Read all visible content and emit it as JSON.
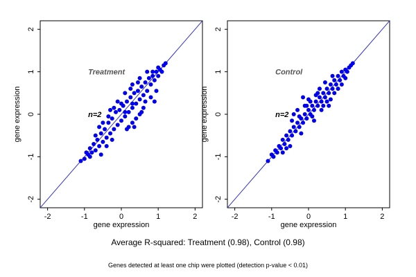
{
  "chart_data": [
    {
      "type": "scatter",
      "title": "",
      "xlabel": "gene expression",
      "ylabel": "gene expression",
      "xlim": [
        -2.2,
        2.2
      ],
      "ylim": [
        -2.2,
        2.2
      ],
      "xticks": [
        "-2",
        "-1",
        "0",
        "1",
        "2"
      ],
      "yticks": [
        "-2",
        "-1",
        "0",
        "1",
        "2"
      ],
      "grid": false,
      "reference_line": {
        "slope": 1,
        "intercept": 0,
        "color": "#3333cc"
      },
      "point_color": "#0000ee",
      "annotations": [
        {
          "text": "Treatment",
          "x": -0.9,
          "y": 1.0,
          "color": "#555555"
        },
        {
          "text": "n=2",
          "x": -0.9,
          "y": 0.0,
          "color": "#000000"
        }
      ],
      "series": [
        {
          "points": [
            [
              -1.1,
              -1.1
            ],
            [
              -1.0,
              -1.05
            ],
            [
              -0.95,
              -0.9
            ],
            [
              -0.9,
              -0.95
            ],
            [
              -0.85,
              -0.8
            ],
            [
              -0.8,
              -0.9
            ],
            [
              -0.75,
              -0.7
            ],
            [
              -0.7,
              -0.85
            ],
            [
              -0.65,
              -0.6
            ],
            [
              -0.6,
              -0.75
            ],
            [
              -0.55,
              -0.45
            ],
            [
              -0.5,
              -0.65
            ],
            [
              -0.45,
              -0.35
            ],
            [
              -0.4,
              -0.55
            ],
            [
              -0.35,
              -0.2
            ],
            [
              -0.3,
              -0.45
            ],
            [
              -0.25,
              -0.1
            ],
            [
              -0.2,
              -0.35
            ],
            [
              -0.15,
              0.05
            ],
            [
              -0.1,
              -0.25
            ],
            [
              -0.05,
              0.1
            ],
            [
              0.0,
              -0.15
            ],
            [
              0.05,
              0.2
            ],
            [
              0.1,
              -0.05
            ],
            [
              0.15,
              0.3
            ],
            [
              0.2,
              0.05
            ],
            [
              0.25,
              0.4
            ],
            [
              0.3,
              0.15
            ],
            [
              0.35,
              0.5
            ],
            [
              0.4,
              0.25
            ],
            [
              0.45,
              0.55
            ],
            [
              0.5,
              0.35
            ],
            [
              0.55,
              0.65
            ],
            [
              0.6,
              0.45
            ],
            [
              0.65,
              0.75
            ],
            [
              0.7,
              0.55
            ],
            [
              0.75,
              0.85
            ],
            [
              0.8,
              0.7
            ],
            [
              0.85,
              0.9
            ],
            [
              0.9,
              0.8
            ],
            [
              0.95,
              1.0
            ],
            [
              1.0,
              0.9
            ],
            [
              1.05,
              1.05
            ],
            [
              1.1,
              1.0
            ],
            [
              1.15,
              1.15
            ],
            [
              1.2,
              1.2
            ],
            [
              -0.5,
              -0.2
            ],
            [
              -0.3,
              0.1
            ],
            [
              -0.1,
              0.3
            ],
            [
              0.1,
              0.5
            ],
            [
              0.3,
              0.7
            ],
            [
              -0.6,
              -0.3
            ],
            [
              0.2,
              -0.3
            ],
            [
              0.4,
              -0.1
            ],
            [
              -0.4,
              -0.75
            ],
            [
              0.6,
              0.15
            ],
            [
              0.8,
              0.4
            ],
            [
              0.9,
              0.3
            ],
            [
              -0.7,
              -0.5
            ],
            [
              0.0,
              0.25
            ],
            [
              0.5,
              0.85
            ],
            [
              0.7,
              1.0
            ],
            [
              -0.2,
              0.15
            ],
            [
              0.3,
              -0.2
            ],
            [
              0.55,
              0.05
            ],
            [
              -0.85,
              -1.0
            ],
            [
              -0.25,
              -0.6
            ],
            [
              0.15,
              -0.35
            ],
            [
              0.45,
              0.75
            ],
            [
              1.0,
              1.1
            ],
            [
              0.35,
              -0.3
            ],
            [
              0.5,
              0.0
            ],
            [
              0.65,
              0.3
            ],
            [
              0.95,
              0.55
            ],
            [
              0.3,
              0.25
            ],
            [
              -0.55,
              -0.95
            ],
            [
              0.25,
              0.6
            ],
            [
              0.85,
              1.0
            ],
            [
              0.1,
              0.05
            ],
            [
              -0.35,
              -0.05
            ]
          ]
        }
      ]
    },
    {
      "type": "scatter",
      "title": "",
      "xlabel": "gene expression",
      "ylabel": "gene expression",
      "xlim": [
        -2.2,
        2.2
      ],
      "ylim": [
        -2.2,
        2.2
      ],
      "xticks": [
        "-2",
        "-1",
        "0",
        "1",
        "2"
      ],
      "yticks": [
        "-2",
        "-1",
        "0",
        "1",
        "2"
      ],
      "grid": false,
      "reference_line": {
        "slope": 1,
        "intercept": 0,
        "color": "#3333cc"
      },
      "point_color": "#0000ee",
      "annotations": [
        {
          "text": "Control",
          "x": -0.9,
          "y": 1.0,
          "color": "#555555"
        },
        {
          "text": "n=2",
          "x": -0.9,
          "y": 0.0,
          "color": "#000000"
        }
      ],
      "series": [
        {
          "points": [
            [
              -1.1,
              -1.1
            ],
            [
              -1.0,
              -0.95
            ],
            [
              -0.95,
              -1.0
            ],
            [
              -0.9,
              -0.85
            ],
            [
              -0.85,
              -0.9
            ],
            [
              -0.8,
              -0.75
            ],
            [
              -0.75,
              -0.8
            ],
            [
              -0.7,
              -0.6
            ],
            [
              -0.65,
              -0.7
            ],
            [
              -0.6,
              -0.5
            ],
            [
              -0.55,
              -0.6
            ],
            [
              -0.5,
              -0.4
            ],
            [
              -0.45,
              -0.5
            ],
            [
              -0.4,
              -0.3
            ],
            [
              -0.35,
              -0.4
            ],
            [
              -0.3,
              -0.2
            ],
            [
              -0.25,
              -0.3
            ],
            [
              -0.2,
              -0.1
            ],
            [
              -0.15,
              -0.2
            ],
            [
              -0.1,
              0.0
            ],
            [
              -0.05,
              -0.1
            ],
            [
              0.0,
              0.1
            ],
            [
              0.05,
              0.0
            ],
            [
              0.1,
              0.2
            ],
            [
              0.15,
              0.1
            ],
            [
              0.2,
              0.3
            ],
            [
              0.25,
              0.2
            ],
            [
              0.3,
              0.4
            ],
            [
              0.35,
              0.3
            ],
            [
              0.4,
              0.5
            ],
            [
              0.45,
              0.4
            ],
            [
              0.5,
              0.6
            ],
            [
              0.55,
              0.5
            ],
            [
              0.6,
              0.7
            ],
            [
              0.65,
              0.6
            ],
            [
              0.7,
              0.8
            ],
            [
              0.75,
              0.7
            ],
            [
              0.8,
              0.9
            ],
            [
              0.85,
              0.8
            ],
            [
              0.9,
              1.0
            ],
            [
              0.95,
              0.9
            ],
            [
              1.0,
              1.05
            ],
            [
              1.05,
              1.0
            ],
            [
              1.1,
              1.1
            ],
            [
              1.15,
              1.15
            ],
            [
              1.2,
              1.2
            ],
            [
              -0.3,
              0.1
            ],
            [
              -0.1,
              0.2
            ],
            [
              0.2,
              0.45
            ],
            [
              -0.45,
              -0.15
            ],
            [
              0.4,
              0.2
            ],
            [
              0.6,
              0.35
            ],
            [
              0.15,
              -0.15
            ],
            [
              -0.2,
              -0.45
            ],
            [
              0.7,
              0.5
            ],
            [
              0.9,
              0.7
            ],
            [
              -0.6,
              -0.8
            ],
            [
              0.0,
              0.35
            ],
            [
              0.3,
              0.6
            ],
            [
              0.45,
              0.75
            ],
            [
              -0.4,
              0.0
            ],
            [
              -0.15,
              0.4
            ],
            [
              0.35,
              0.1
            ],
            [
              0.55,
              0.2
            ],
            [
              -0.5,
              -0.75
            ],
            [
              0.1,
              -0.05
            ],
            [
              0.8,
              0.6
            ],
            [
              1.0,
              0.85
            ],
            [
              0.25,
              0.5
            ],
            [
              -0.05,
              0.2
            ],
            [
              0.65,
              0.9
            ],
            [
              0.5,
              0.3
            ],
            [
              -0.25,
              -0.05
            ],
            [
              0.05,
              0.3
            ],
            [
              -0.7,
              -0.9
            ]
          ]
        }
      ]
    }
  ],
  "caption": {
    "main": "Average R-squared: Treatment (0.98), Control (0.98)",
    "note": "Genes detected at least one chip were plotted (detection p-value < 0.01)"
  }
}
